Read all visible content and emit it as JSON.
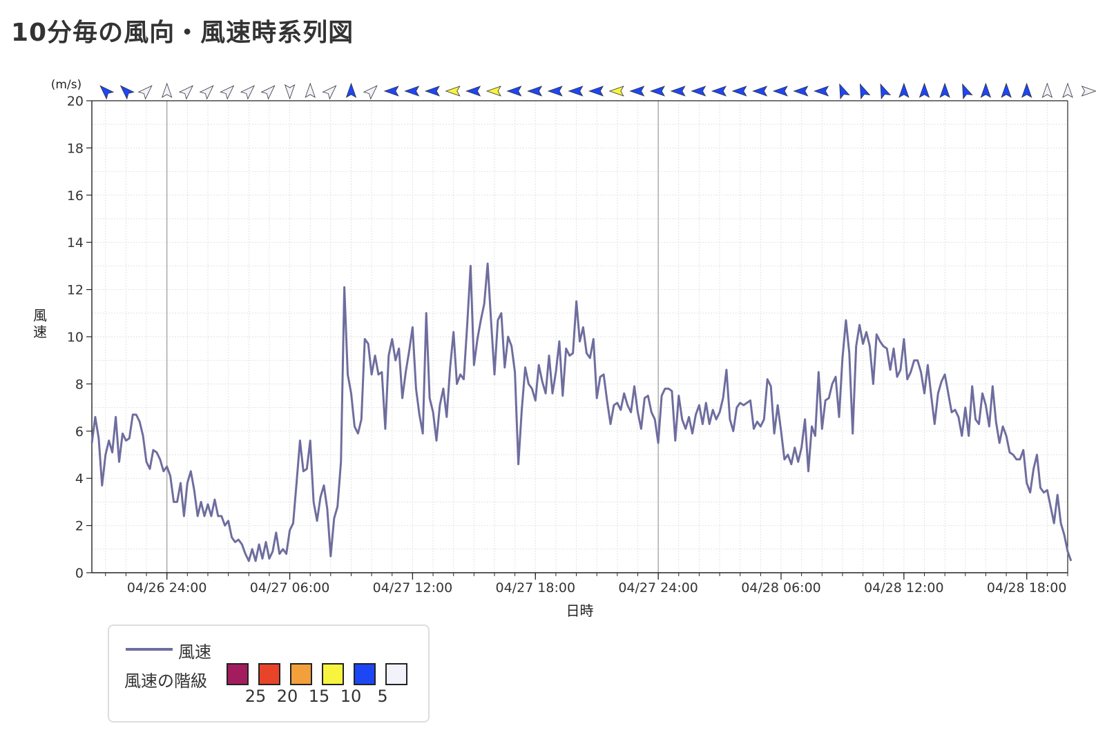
{
  "page": {
    "title": "10分毎の風向・風速時系列図"
  },
  "legend": {
    "series_label": "風速",
    "scale_label": "風速の階級",
    "classes": [
      {
        "label": "25",
        "color": "#a31c5e"
      },
      {
        "label": "20",
        "color": "#e8442a"
      },
      {
        "label": "15",
        "color": "#f2a03b"
      },
      {
        "label": "10",
        "color": "#f7f43f"
      },
      {
        "label": "5",
        "color": "#1d46f5"
      },
      {
        "label": "",
        "color": "#f2f2fa"
      }
    ]
  },
  "colors": {
    "line": "#6e6d9e",
    "grid": "#dcdcdc",
    "axis": "#222222"
  },
  "chart_data": {
    "type": "line",
    "xlabel": "日時",
    "ylabel": "風速",
    "yunit": "(m/s)",
    "ylim": [
      0,
      20
    ],
    "yticks": [
      0,
      2,
      4,
      6,
      8,
      10,
      12,
      14,
      16,
      18,
      20
    ],
    "x_start": "04/26 20:20",
    "x_end": "04/28 20:00",
    "x_interval_minutes": 10,
    "xticks": [
      {
        "time": "04/27 00:00",
        "label": "04/26 24:00"
      },
      {
        "time": "04/27 06:00",
        "label": "04/27 06:00"
      },
      {
        "time": "04/27 12:00",
        "label": "04/27 12:00"
      },
      {
        "time": "04/27 18:00",
        "label": "04/27 18:00"
      },
      {
        "time": "04/28 00:00",
        "label": "04/27 24:00"
      },
      {
        "time": "04/28 06:00",
        "label": "04/28 06:00"
      },
      {
        "time": "04/28 12:00",
        "label": "04/28 12:00"
      },
      {
        "time": "04/28 18:00",
        "label": "04/28 18:00"
      }
    ],
    "grid": true,
    "series": [
      {
        "name": "風速",
        "values": [
          5.5,
          6.6,
          5.7,
          3.7,
          5.0,
          5.6,
          5.1,
          6.6,
          4.7,
          5.9,
          5.6,
          5.7,
          6.7,
          6.7,
          6.4,
          5.8,
          4.7,
          4.4,
          5.2,
          5.1,
          4.8,
          4.3,
          4.5,
          4.1,
          3.0,
          3.0,
          3.8,
          2.4,
          3.8,
          4.3,
          3.5,
          2.4,
          3.0,
          2.4,
          2.9,
          2.4,
          3.1,
          2.4,
          2.4,
          2.0,
          2.2,
          1.5,
          1.3,
          1.4,
          1.2,
          0.8,
          0.5,
          1.0,
          0.5,
          1.2,
          0.6,
          1.3,
          0.6,
          0.9,
          1.7,
          0.8,
          1.0,
          0.8,
          1.8,
          2.1,
          3.8,
          5.6,
          4.3,
          4.4,
          5.6,
          3.0,
          2.2,
          3.2,
          3.7,
          2.7,
          0.7,
          2.3,
          2.8,
          4.7,
          12.1,
          8.4,
          7.6,
          6.2,
          5.9,
          6.5,
          9.9,
          9.7,
          8.4,
          9.2,
          8.4,
          8.5,
          6.1,
          9.2,
          9.9,
          9.0,
          9.5,
          7.4,
          8.5,
          9.4,
          10.4,
          7.8,
          6.7,
          5.9,
          11.0,
          7.4,
          6.8,
          5.6,
          7.1,
          7.8,
          6.6,
          8.7,
          10.2,
          8.0,
          8.4,
          8.2,
          10.5,
          13.0,
          8.8,
          9.9,
          10.7,
          11.4,
          13.1,
          10.7,
          8.4,
          10.7,
          11.0,
          8.7,
          10.0,
          9.6,
          8.5,
          4.6,
          6.9,
          8.7,
          8.0,
          7.8,
          7.3,
          8.8,
          8.1,
          7.6,
          9.2,
          7.6,
          8.5,
          9.8,
          7.5,
          9.5,
          9.2,
          9.3,
          11.5,
          9.8,
          10.4,
          9.3,
          9.1,
          9.9,
          7.4,
          8.3,
          8.4,
          7.3,
          6.3,
          7.1,
          7.2,
          6.9,
          7.6,
          7.1,
          6.8,
          7.9,
          6.8,
          6.1,
          7.4,
          7.5,
          6.8,
          6.5,
          5.5,
          7.5,
          7.8,
          7.8,
          7.7,
          5.6,
          7.5,
          6.5,
          6.1,
          6.6,
          5.9,
          6.7,
          7.1,
          6.3,
          7.2,
          6.3,
          6.9,
          6.5,
          6.8,
          7.4,
          8.6,
          6.5,
          6.0,
          7.0,
          7.2,
          7.1,
          7.2,
          7.3,
          6.1,
          6.4,
          6.2,
          6.5,
          8.2,
          7.9,
          5.9,
          7.1,
          6.0,
          4.8,
          5.0,
          4.6,
          5.3,
          4.7,
          5.3,
          6.5,
          4.3,
          6.2,
          5.8,
          8.5,
          6.1,
          7.3,
          7.4,
          8.0,
          8.3,
          6.6,
          9.1,
          10.7,
          9.3,
          5.9,
          9.6,
          10.5,
          9.7,
          10.2,
          9.6,
          8.0,
          10.1,
          9.8,
          9.6,
          9.5,
          8.6,
          9.5,
          8.3,
          8.6,
          9.9,
          8.2,
          8.5,
          9.0,
          9.0,
          8.5,
          7.6,
          8.8,
          7.5,
          6.3,
          7.6,
          8.1,
          8.4,
          7.6,
          6.8,
          6.9,
          6.6,
          5.8,
          7.0,
          5.8,
          7.9,
          6.5,
          6.3,
          7.6,
          7.1,
          6.2,
          7.9,
          6.4,
          5.5,
          6.2,
          5.8,
          5.1,
          5.0,
          4.8,
          4.8,
          5.2,
          3.8,
          3.4,
          4.4,
          5.0,
          3.6,
          3.4,
          3.5,
          2.8,
          2.1,
          3.3,
          2.1,
          1.6,
          0.9,
          0.5
        ]
      }
    ],
    "wind_barbs": [
      {
        "d": "NW",
        "c": "blue"
      },
      {
        "d": "NW",
        "c": "blue"
      },
      {
        "d": "NE",
        "c": "light"
      },
      {
        "d": "N",
        "c": "light"
      },
      {
        "d": "NE",
        "c": "light"
      },
      {
        "d": "NE",
        "c": "light"
      },
      {
        "d": "NE",
        "c": "light"
      },
      {
        "d": "NE",
        "c": "light"
      },
      {
        "d": "NE",
        "c": "light"
      },
      {
        "d": "S",
        "c": "light"
      },
      {
        "d": "N",
        "c": "light"
      },
      {
        "d": "NE",
        "c": "light"
      },
      {
        "d": "N",
        "c": "blue"
      },
      {
        "d": "NE",
        "c": "light"
      },
      {
        "d": "W",
        "c": "blue"
      },
      {
        "d": "W",
        "c": "blue"
      },
      {
        "d": "W",
        "c": "blue"
      },
      {
        "d": "W",
        "c": "yellow"
      },
      {
        "d": "W",
        "c": "blue"
      },
      {
        "d": "W",
        "c": "yellow"
      },
      {
        "d": "W",
        "c": "blue"
      },
      {
        "d": "W",
        "c": "blue"
      },
      {
        "d": "W",
        "c": "blue"
      },
      {
        "d": "W",
        "c": "blue"
      },
      {
        "d": "W",
        "c": "blue"
      },
      {
        "d": "W",
        "c": "yellow"
      },
      {
        "d": "W",
        "c": "blue"
      },
      {
        "d": "W",
        "c": "blue"
      },
      {
        "d": "W",
        "c": "blue"
      },
      {
        "d": "W",
        "c": "blue"
      },
      {
        "d": "W",
        "c": "blue"
      },
      {
        "d": "W",
        "c": "blue"
      },
      {
        "d": "W",
        "c": "blue"
      },
      {
        "d": "W",
        "c": "blue"
      },
      {
        "d": "W",
        "c": "blue"
      },
      {
        "d": "W",
        "c": "blue"
      },
      {
        "d": "NNW",
        "c": "blue"
      },
      {
        "d": "NNW",
        "c": "blue"
      },
      {
        "d": "NNW",
        "c": "blue"
      },
      {
        "d": "N",
        "c": "blue"
      },
      {
        "d": "N",
        "c": "blue"
      },
      {
        "d": "N",
        "c": "blue"
      },
      {
        "d": "NNW",
        "c": "blue"
      },
      {
        "d": "N",
        "c": "blue"
      },
      {
        "d": "N",
        "c": "blue"
      },
      {
        "d": "N",
        "c": "blue"
      },
      {
        "d": "N",
        "c": "light"
      },
      {
        "d": "N",
        "c": "light"
      },
      {
        "d": "E",
        "c": "light"
      }
    ]
  }
}
